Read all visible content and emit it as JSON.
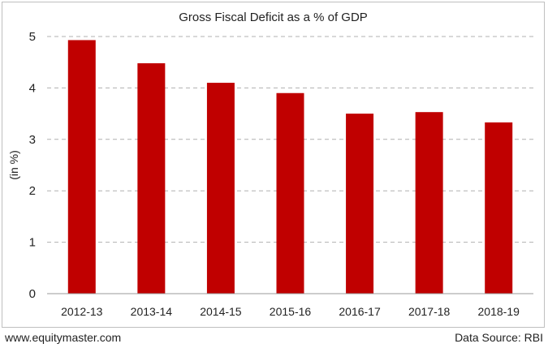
{
  "chart_data": {
    "type": "bar",
    "title": "Gross Fiscal Deficit as a % of GDP",
    "ylabel": "(in %)",
    "xlabel": "",
    "categories": [
      "2012-13",
      "2013-14",
      "2014-15",
      "2015-16",
      "2016-17",
      "2017-18",
      "2018-19"
    ],
    "values": [
      4.93,
      4.48,
      4.1,
      3.9,
      3.5,
      3.53,
      3.33
    ],
    "ylim": [
      0,
      5
    ],
    "yticks": [
      0,
      1,
      2,
      3,
      4,
      5
    ],
    "grid": true,
    "bar_color": "#c00000",
    "grid_color": "#b0b0b0"
  },
  "footer": {
    "website": "www.equitymaster.com",
    "source": "Data Source: RBI"
  }
}
